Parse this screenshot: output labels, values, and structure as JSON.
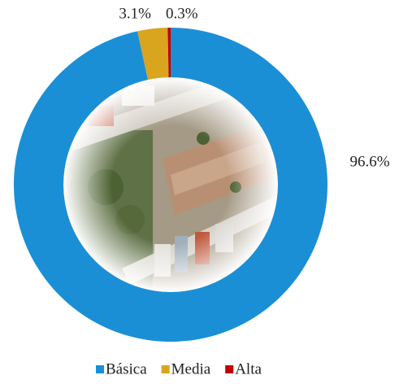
{
  "chart_data": {
    "type": "donut",
    "categories": [
      "Básica",
      "Media",
      "Alta"
    ],
    "values": [
      96.6,
      3.1,
      0.3
    ],
    "value_labels": [
      "96.6%",
      "3.1%",
      "0.3%"
    ],
    "colors": [
      "#1b8fd6",
      "#d9a41e",
      "#c00000"
    ],
    "legend": "bottom"
  }
}
